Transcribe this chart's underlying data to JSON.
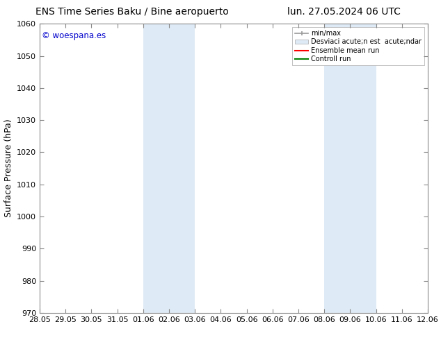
{
  "title_left": "ENS Time Series Baku / Bine aeropuerto",
  "title_right": "lun. 27.05.2024 06 UTC",
  "ylabel": "Surface Pressure (hPa)",
  "ylim": [
    970,
    1060
  ],
  "yticks": [
    970,
    980,
    990,
    1000,
    1010,
    1020,
    1030,
    1040,
    1050,
    1060
  ],
  "xtick_labels": [
    "28.05",
    "29.05",
    "30.05",
    "31.05",
    "01.06",
    "02.06",
    "03.06",
    "04.06",
    "05.06",
    "06.06",
    "07.06",
    "08.06",
    "09.06",
    "10.06",
    "11.06",
    "12.06"
  ],
  "bg_color": "#ffffff",
  "plot_bg_color": "#ffffff",
  "shaded_bands": [
    {
      "x_start": "01.06",
      "x_end": "03.06",
      "color": "#deeaf5"
    },
    {
      "x_start": "08.06",
      "x_end": "10.06",
      "color": "#deeaf5"
    }
  ],
  "watermark_text": "© woespana.es",
  "watermark_color": "#0000cc",
  "legend_labels": [
    "min/max",
    "Desviaci acute;n est  acute;ndar",
    "Ensemble mean run",
    "Controll run"
  ],
  "legend_colors_line": [
    "#999999",
    null,
    "#ff0000",
    "#008000"
  ],
  "legend_patch_color": "#deeaf5",
  "grid_color": "#dddddd",
  "title_fontsize": 10,
  "tick_fontsize": 8,
  "ylabel_fontsize": 9
}
